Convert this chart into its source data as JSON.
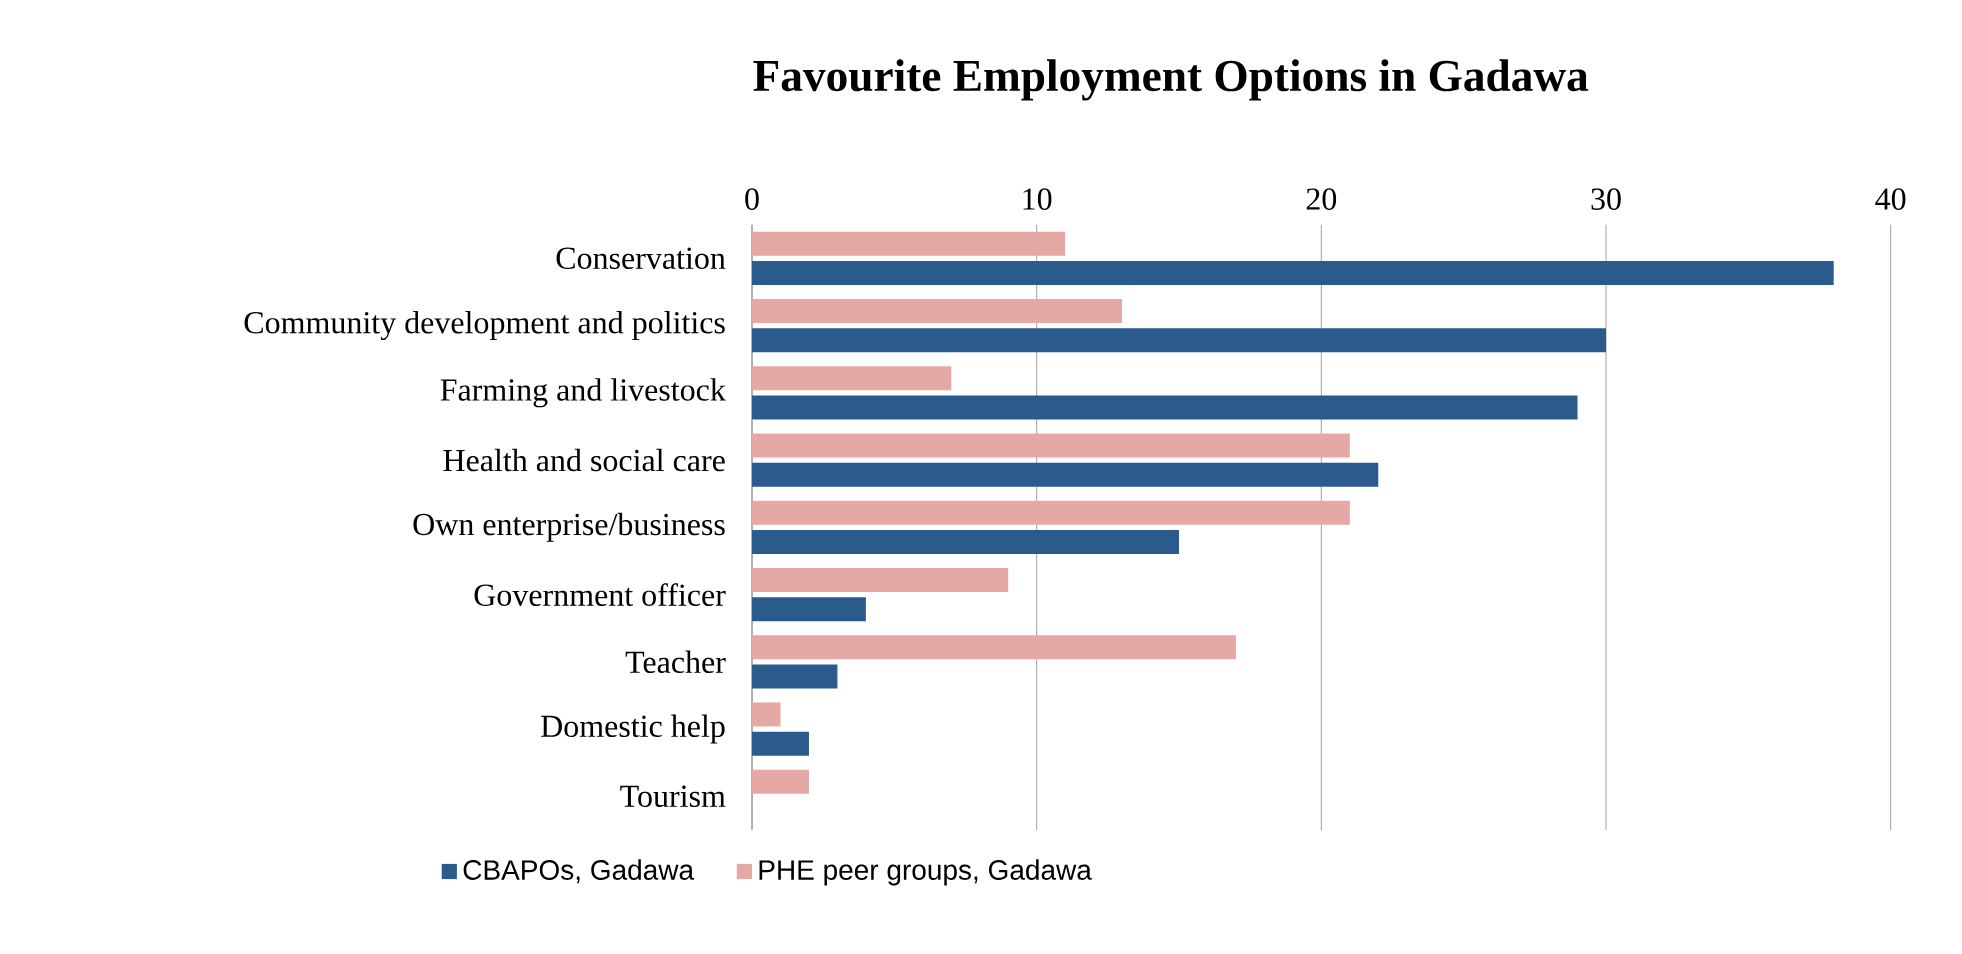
{
  "chart_data": {
    "type": "bar",
    "orientation": "horizontal",
    "title": "Favourite Employment Options in Gadawa",
    "categories": [
      "Conservation",
      "Community development and politics",
      "Farming and livestock",
      "Health and social care",
      "Own enterprise/business",
      "Government officer",
      "Teacher",
      "Domestic help",
      "Tourism"
    ],
    "series": [
      {
        "name": "CBAPOs, Gadawa",
        "color": "#2b5a8d",
        "values": [
          38,
          30,
          29,
          22,
          15,
          4,
          3,
          2,
          0
        ]
      },
      {
        "name": "PHE peer groups, Gadawa",
        "color": "#e6a8a5",
        "values": [
          11,
          13,
          7,
          21,
          21,
          9,
          17,
          1,
          2
        ]
      }
    ],
    "xlim": [
      0,
      40
    ],
    "xticks": [
      0,
      10,
      20,
      30,
      40
    ],
    "grid": "x",
    "legend": "bottom"
  }
}
